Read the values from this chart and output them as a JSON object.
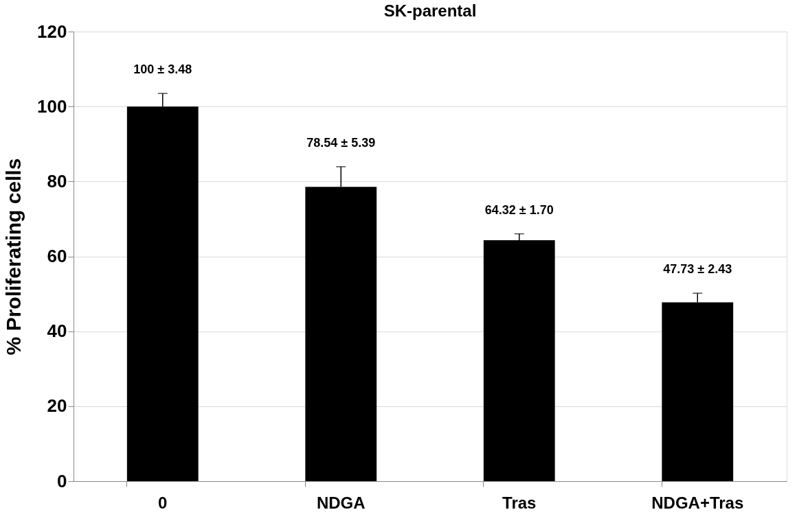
{
  "chart_data": {
    "type": "bar",
    "title": "SK-parental",
    "ylabel": "% Proliferating cells",
    "categories": [
      "0",
      "NDGA",
      "Tras",
      "NDGA+Tras"
    ],
    "values": [
      100,
      78.54,
      64.32,
      47.73
    ],
    "errors": [
      [
        100,
        103.48
      ],
      [
        78.54,
        83.93
      ],
      [
        64.32,
        66.02
      ],
      [
        47.73,
        50.16
      ]
    ],
    "value_labels": [
      "100 ± 3.48",
      "78.54 ± 5.39",
      "64.32 ± 1.70",
      "47.73 ± 2.43"
    ],
    "color": "#000000",
    "ylim": [
      0,
      120
    ],
    "yticks": [
      0,
      20,
      40,
      60,
      80,
      100,
      120
    ],
    "grid": "y"
  }
}
